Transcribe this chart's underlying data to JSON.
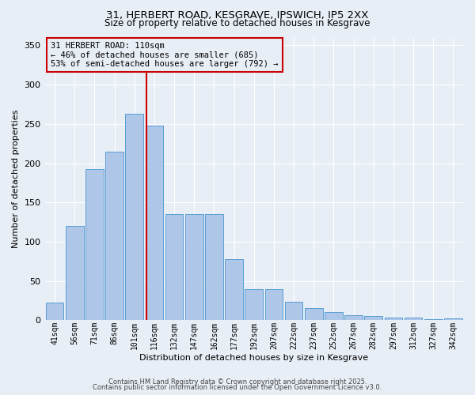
{
  "title_line1": "31, HERBERT ROAD, KESGRAVE, IPSWICH, IP5 2XX",
  "title_line2": "Size of property relative to detached houses in Kesgrave",
  "xlabel": "Distribution of detached houses by size in Kesgrave",
  "ylabel": "Number of detached properties",
  "categories": [
    "41sqm",
    "56sqm",
    "71sqm",
    "86sqm",
    "101sqm",
    "116sqm",
    "132sqm",
    "147sqm",
    "162sqm",
    "177sqm",
    "192sqm",
    "207sqm",
    "222sqm",
    "237sqm",
    "252sqm",
    "267sqm",
    "282sqm",
    "297sqm",
    "312sqm",
    "327sqm",
    "342sqm"
  ],
  "values": [
    22,
    120,
    192,
    215,
    263,
    248,
    135,
    135,
    135,
    78,
    40,
    40,
    23,
    15,
    10,
    6,
    5,
    3,
    3,
    1,
    2
  ],
  "bar_color": "#aec6e8",
  "bar_edge_color": "#5a9fd4",
  "background_color": "#e8eef6",
  "grid_color": "#ffffff",
  "vline_color": "#cc0000",
  "annotation_text": "31 HERBERT ROAD: 110sqm\n← 46% of detached houses are smaller (685)\n53% of semi-detached houses are larger (792) →",
  "annotation_box_color": "#cc0000",
  "ylim": [
    0,
    360
  ],
  "yticks": [
    0,
    50,
    100,
    150,
    200,
    250,
    300,
    350
  ],
  "footer_line1": "Contains HM Land Registry data © Crown copyright and database right 2025.",
  "footer_line2": "Contains public sector information licensed under the Open Government Licence v3.0."
}
